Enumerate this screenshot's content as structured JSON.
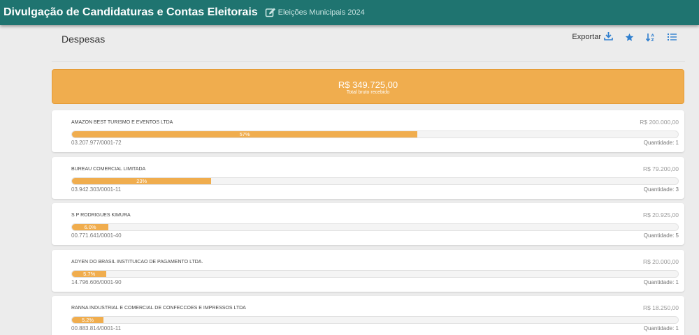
{
  "header": {
    "title": "Divulgação de Candidaturas e Contas Eleitorais",
    "election": "Eleições Municipais 2024",
    "colors": {
      "bar": "#1f7470"
    }
  },
  "page": {
    "title": "Despesas",
    "toolbar": {
      "export_label": "Exportar",
      "icons": [
        "download-icon",
        "star-icon",
        "sort-az-icon",
        "list-icon"
      ]
    }
  },
  "total": {
    "value": "R$ 349.725,00",
    "label": "Total bruto recebido",
    "color": "#f0ad4e"
  },
  "suppliers": [
    {
      "name": "AMAZON BEST TURISMO E EVENTOS LTDA",
      "amount": "R$ 200.000,00",
      "percent_label": "57%",
      "percent": 57,
      "doc": "03.207.977/0001-72",
      "quantity": "Quantidade: 1"
    },
    {
      "name": "BUREAU COMERCIAL LIMITADA",
      "amount": "R$ 79.200,00",
      "percent_label": "23%",
      "percent": 23,
      "doc": "03.942.303/0001-11",
      "quantity": "Quantidade: 3"
    },
    {
      "name": "S P RODRIGUES KIMURA",
      "amount": "R$ 20.925,00",
      "percent_label": "6.0%",
      "percent": 6.0,
      "doc": "00.771.641/0001-40",
      "quantity": "Quantidade: 5"
    },
    {
      "name": "ADYEN DO BRASIL INSTITUICAO DE PAGAMENTO LTDA.",
      "amount": "R$ 20.000,00",
      "percent_label": "5.7%",
      "percent": 5.7,
      "doc": "14.796.606/0001-90",
      "quantity": "Quantidade: 1"
    },
    {
      "name": "RANNA INDUSTRIAL E COMERCIAL DE CONFECCOES E IMPRESSOS LTDA",
      "amount": "R$ 18.250,00",
      "percent_label": "5.2%",
      "percent": 5.2,
      "doc": "00.883.814/0001-11",
      "quantity": "Quantidade: 1"
    }
  ]
}
